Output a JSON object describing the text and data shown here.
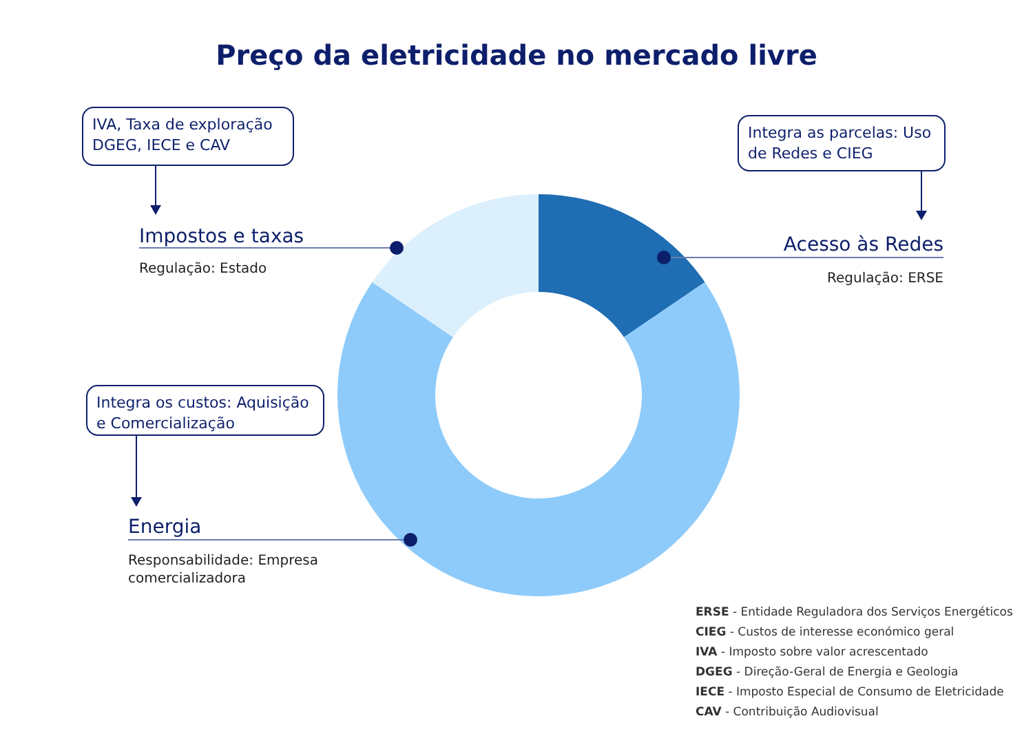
{
  "chart_data": {
    "type": "donut",
    "title": "Preço da eletricidade no mercado livre",
    "categories": [
      "Acesso às Redes",
      "Energia",
      "Impostos e taxas"
    ],
    "values": [
      15.5,
      69,
      15.5
    ],
    "colors": [
      "#1f6db3",
      "#8ecbfa",
      "#dbeffd"
    ],
    "annotations": [
      "Integra as parcelas: Uso\nde Redes e CIEG",
      "Regulação: ERSE",
      "Integra os custos: Aquisição\ne Comercialização",
      "Responsabilidade: Empresa\ncomercializadora",
      "IVA, Taxa de exploração\nDGEG, IECE e CAV",
      "Regulação: Estado",
      "ERSE - Entidade Reguladora dos Serviços Energéticos",
      "CIEG - Custos de interesse económico geral",
      "IVA - Imposto sobre valor acrescentado",
      "DGEG - Direção-Geral de Energia e Geologia",
      "IECE - Imposto Especial de Consumo de Eletricidade",
      "CAV - Contribuição Audiovisual"
    ]
  }
}
